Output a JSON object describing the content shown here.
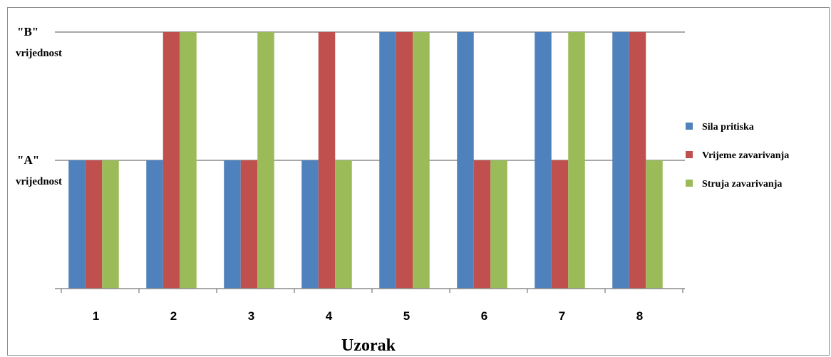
{
  "chart_data": {
    "type": "bar",
    "xlabel": "Uzorak",
    "ylabel": "",
    "y_ticks": [
      {
        "main": "\"B\"",
        "sub": "vrijednost",
        "value": 2
      },
      {
        "main": "\"A\"",
        "sub": "vrijednost",
        "value": 1
      }
    ],
    "ylim": [
      0,
      2
    ],
    "grid": true,
    "legend_position": "right",
    "categories": [
      "1",
      "2",
      "3",
      "4",
      "5",
      "6",
      "7",
      "8"
    ],
    "series": [
      {
        "name": "Sila pritiska",
        "color": "#4f81bd",
        "values": [
          1,
          1,
          1,
          1,
          2,
          2,
          2,
          2
        ]
      },
      {
        "name": "Vrijeme zavarivanja",
        "color": "#c0504d",
        "values": [
          1,
          2,
          1,
          2,
          2,
          1,
          1,
          2
        ]
      },
      {
        "name": "Struja zavarivanja",
        "color": "#9bbb59",
        "values": [
          1,
          2,
          2,
          1,
          2,
          1,
          2,
          1
        ]
      }
    ]
  }
}
